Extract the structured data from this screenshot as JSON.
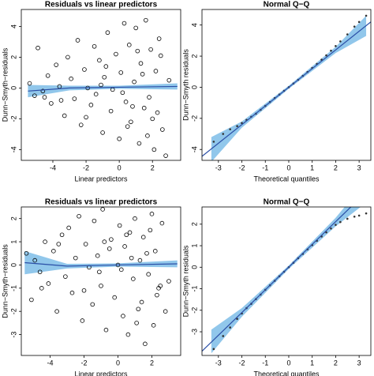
{
  "chart_data": [
    {
      "type": "scatter",
      "title": "Residuals vs linear predictors",
      "x_label": "Linear predictors",
      "y_label": "Dunn−Smyth−residuals",
      "xlim": [
        -5.9,
        3.7
      ],
      "ylim": [
        -4.7,
        5.1
      ],
      "xticks": [
        -4,
        -2,
        0,
        2
      ],
      "yticks": [
        -4,
        -2,
        0,
        2,
        4
      ],
      "color": "#000000",
      "x": [
        -5.4,
        -5.1,
        -4.9,
        -4.6,
        -4.3,
        -4.1,
        -3.8,
        -3.6,
        -3.3,
        -3.1,
        -2.9,
        -2.7,
        -2.5,
        -2.3,
        -2.1,
        -1.9,
        -1.7,
        -1.5,
        -1.4,
        -1.2,
        -1.0,
        -0.9,
        -0.7,
        -0.5,
        -0.4,
        -0.2,
        0.0,
        0.1,
        0.3,
        0.4,
        0.6,
        0.7,
        0.9,
        1.0,
        1.2,
        1.3,
        1.5,
        1.6,
        1.8,
        1.9,
        2.1,
        2.2,
        2.4,
        2.6,
        2.8,
        3.0,
        -3.5,
        -2.0,
        -0.8,
        0.2,
        0.8,
        1.4,
        2.0,
        2.5,
        -1.1,
        0.5,
        1.1,
        1.7,
        2.3,
        -4.5
      ],
      "y": [
        0.3,
        -0.5,
        2.6,
        -0.2,
        0.8,
        -1.0,
        1.5,
        0.1,
        -1.8,
        2.0,
        0.6,
        -0.7,
        3.1,
        -2.4,
        1.2,
        0.0,
        -1.1,
        2.7,
        -0.4,
        1.8,
        -2.9,
        0.7,
        3.6,
        -1.5,
        -0.1,
        2.2,
        -3.3,
        1.0,
        4.2,
        -0.9,
        2.8,
        -2.2,
        0.4,
        3.9,
        -3.6,
        1.6,
        -1.3,
        4.4,
        -0.6,
        2.5,
        -4.0,
        1.1,
        3.2,
        -2.7,
        -4.4,
        0.5,
        -0.8,
        -1.9,
        1.4,
        -0.3,
        -1.2,
        0.9,
        -2.0,
        2.1,
        0.2,
        -2.5,
        2.4,
        -3.1,
        -1.6,
        -0.6
      ],
      "line": {
        "x": [
          -5.5,
          -3,
          0,
          3.5
        ],
        "y": [
          -0.2,
          0.0,
          0.05,
          0.1
        ],
        "color": "#2a4ea6"
      },
      "band": {
        "x": [
          -5.5,
          -3,
          0,
          3.5
        ],
        "lower": [
          -0.6,
          -0.15,
          -0.05,
          -0.1
        ],
        "upper": [
          0.2,
          0.15,
          0.15,
          0.3
        ],
        "color": "#6cb4e4"
      }
    },
    {
      "type": "qq",
      "title": "Normal Q−Q",
      "x_label": "Theoretical quantiles",
      "y_label": "Dunn−Smyth residuals",
      "xlim": [
        -3.7,
        3.5
      ],
      "ylim": [
        -4.7,
        5.0
      ],
      "xticks": [
        -3,
        -2,
        -1,
        0,
        1,
        2,
        3
      ],
      "yticks": [
        -4,
        -2,
        0,
        2,
        4
      ],
      "color": "#333333",
      "x": [
        -3.2,
        -2.8,
        -2.5,
        -2.2,
        -2.0,
        -1.8,
        -1.6,
        -1.4,
        -1.2,
        -1.0,
        -0.8,
        -0.6,
        -0.4,
        -0.2,
        0.0,
        0.2,
        0.4,
        0.6,
        0.8,
        1.0,
        1.2,
        1.4,
        1.6,
        1.8,
        2.0,
        2.2,
        2.5,
        2.8,
        3.0,
        3.3
      ],
      "y": [
        -3.5,
        -3.0,
        -2.7,
        -2.5,
        -2.3,
        -2.1,
        -1.9,
        -1.7,
        -1.45,
        -1.2,
        -0.95,
        -0.7,
        -0.47,
        -0.23,
        0.0,
        0.24,
        0.48,
        0.73,
        0.98,
        1.24,
        1.5,
        1.77,
        2.05,
        2.35,
        2.65,
        2.95,
        3.4,
        3.9,
        4.2,
        4.6
      ],
      "line": {
        "x": [
          -3.7,
          3.5
        ],
        "y": [
          -4.44,
          4.2
        ],
        "color": "#2a4ea6"
      },
      "band": {
        "x": [
          -3.3,
          -2,
          0,
          2,
          3.3
        ],
        "lower": [
          -4.8,
          -2.6,
          -0.1,
          2.2,
          3.3
        ],
        "upper": [
          -3.2,
          -2.2,
          0.1,
          2.6,
          4.6
        ],
        "color": "#6cb4e4"
      }
    },
    {
      "type": "scatter",
      "title": "Residuals vs linear predictors",
      "x_label": "Linear predictors",
      "y_label": "Dunn−Smyth−residuals",
      "xlim": [
        -5.7,
        3.7
      ],
      "ylim": [
        -3.9,
        2.5
      ],
      "xticks": [
        -4,
        -2,
        0,
        2
      ],
      "yticks": [
        -3,
        -2,
        -1,
        0,
        1,
        2
      ],
      "color": "#000000",
      "x": [
        -5.4,
        -5.1,
        -4.9,
        -4.6,
        -4.3,
        -4.1,
        -3.8,
        -3.6,
        -3.3,
        -3.1,
        -2.9,
        -2.7,
        -2.5,
        -2.3,
        -2.1,
        -1.9,
        -1.7,
        -1.5,
        -1.4,
        -1.2,
        -1.0,
        -0.9,
        -0.7,
        -0.5,
        -0.4,
        -0.2,
        0.0,
        0.1,
        0.3,
        0.4,
        0.6,
        0.7,
        0.9,
        1.0,
        1.2,
        1.3,
        1.5,
        1.6,
        1.8,
        1.9,
        2.1,
        2.2,
        2.4,
        2.6,
        2.8,
        3.0,
        -3.5,
        -2.0,
        -0.8,
        0.2,
        0.8,
        1.4,
        2.0,
        2.5,
        -1.1,
        0.5,
        1.1,
        1.7,
        2.3,
        -4.5
      ],
      "y": [
        0.5,
        -1.5,
        0.2,
        -0.3,
        1.0,
        -0.8,
        0.6,
        -2.0,
        1.3,
        -0.5,
        1.6,
        -1.2,
        0.3,
        2.1,
        -2.4,
        0.9,
        -0.1,
        -1.7,
        1.9,
        0.4,
        -0.9,
        2.4,
        -2.8,
        0.7,
        1.1,
        -1.4,
        0.0,
        1.7,
        -2.2,
        0.8,
        -3.0,
        1.4,
        -0.6,
        2.0,
        -1.9,
        0.2,
        1.2,
        -3.4,
        -0.4,
        1.5,
        -2.6,
        0.6,
        -1.0,
        1.8,
        -2.0,
        -0.7,
        0.9,
        -1.1,
        1.0,
        -0.2,
        0.3,
        -1.6,
        2.2,
        -0.9,
        -0.3,
        1.3,
        -2.5,
        0.5,
        -1.3,
        -1.0
      ],
      "line": {
        "x": [
          -5.5,
          -3,
          0,
          3.5
        ],
        "y": [
          0.1,
          -0.05,
          0.0,
          0.05
        ],
        "color": "#2a4ea6"
      },
      "band": {
        "x": [
          -5.5,
          -3,
          0,
          3.5
        ],
        "lower": [
          -0.4,
          -0.15,
          -0.07,
          -0.1
        ],
        "upper": [
          0.6,
          0.05,
          0.07,
          0.2
        ],
        "color": "#6cb4e4"
      }
    },
    {
      "type": "qq",
      "title": "Normal Q−Q",
      "x_label": "Theoretical quantiles",
      "y_label": "Dunn−Smyth residuals",
      "xlim": [
        -3.7,
        3.5
      ],
      "ylim": [
        -4.1,
        2.8
      ],
      "xticks": [
        -3,
        -2,
        -1,
        0,
        1,
        2,
        3
      ],
      "yticks": [
        -3,
        -2,
        -1,
        0,
        1,
        2
      ],
      "color": "#333333",
      "x": [
        -3.2,
        -2.8,
        -2.5,
        -2.2,
        -2.0,
        -1.8,
        -1.6,
        -1.4,
        -1.2,
        -1.0,
        -0.8,
        -0.6,
        -0.4,
        -0.2,
        0.0,
        0.2,
        0.4,
        0.6,
        0.8,
        1.0,
        1.2,
        1.4,
        1.6,
        1.8,
        2.0,
        2.2,
        2.5,
        2.8,
        3.0,
        3.3
      ],
      "y": [
        -3.8,
        -3.2,
        -2.8,
        -2.4,
        -2.15,
        -1.9,
        -1.7,
        -1.48,
        -1.27,
        -1.05,
        -0.84,
        -0.63,
        -0.42,
        -0.21,
        0.0,
        0.21,
        0.42,
        0.62,
        0.83,
        1.03,
        1.23,
        1.43,
        1.62,
        1.8,
        1.97,
        2.1,
        2.25,
        2.35,
        2.4,
        2.5
      ],
      "line": {
        "x": [
          -3.7,
          3.5
        ],
        "y": [
          -3.9,
          3.7
        ],
        "color": "#2a4ea6"
      },
      "band": {
        "x": [
          -3.3,
          -2,
          0,
          2,
          3.3
        ],
        "lower": [
          -4.0,
          -2.3,
          -0.08,
          1.9,
          3.0
        ],
        "upper": [
          -2.9,
          -1.9,
          0.08,
          2.3,
          4.0
        ],
        "color": "#6cb4e4"
      }
    }
  ]
}
